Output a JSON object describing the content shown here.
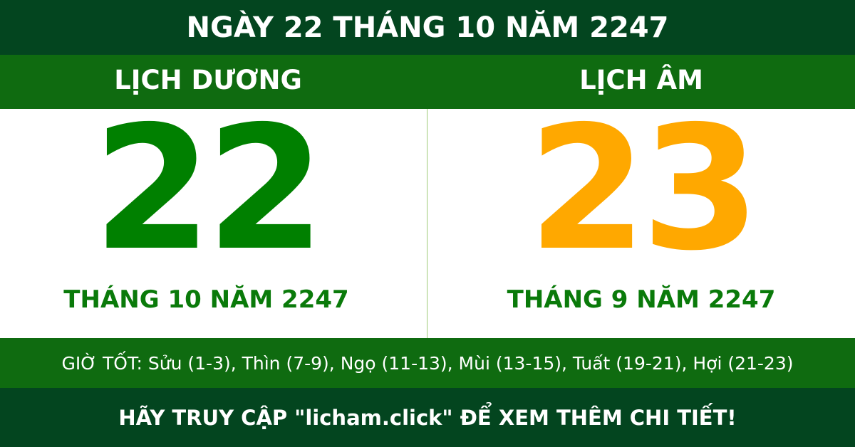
{
  "header": {
    "title": "NGÀY 22 THÁNG 10 NĂM 2247"
  },
  "solar": {
    "label": "LỊCH DƯƠNG",
    "day": "22",
    "month_year": "THÁNG 10 NĂM 2247"
  },
  "lunar": {
    "label": "LỊCH ÂM",
    "day": "23",
    "month_year": "THÁNG 9 NĂM 2247"
  },
  "good_hours": "GIỜ TỐT: Sửu (1-3), Thìn (7-9), Ngọ (11-13), Mùi (13-15), Tuất (19-21), Hợi (21-23)",
  "footer": "HÃY TRUY CẬP \"licham.click\" ĐỂ XEM THÊM CHI TIẾT!",
  "colors": {
    "dark_green": "#03451f",
    "green": "#0f6b10",
    "solar_day": "#008000",
    "lunar_day": "#ffa800"
  }
}
